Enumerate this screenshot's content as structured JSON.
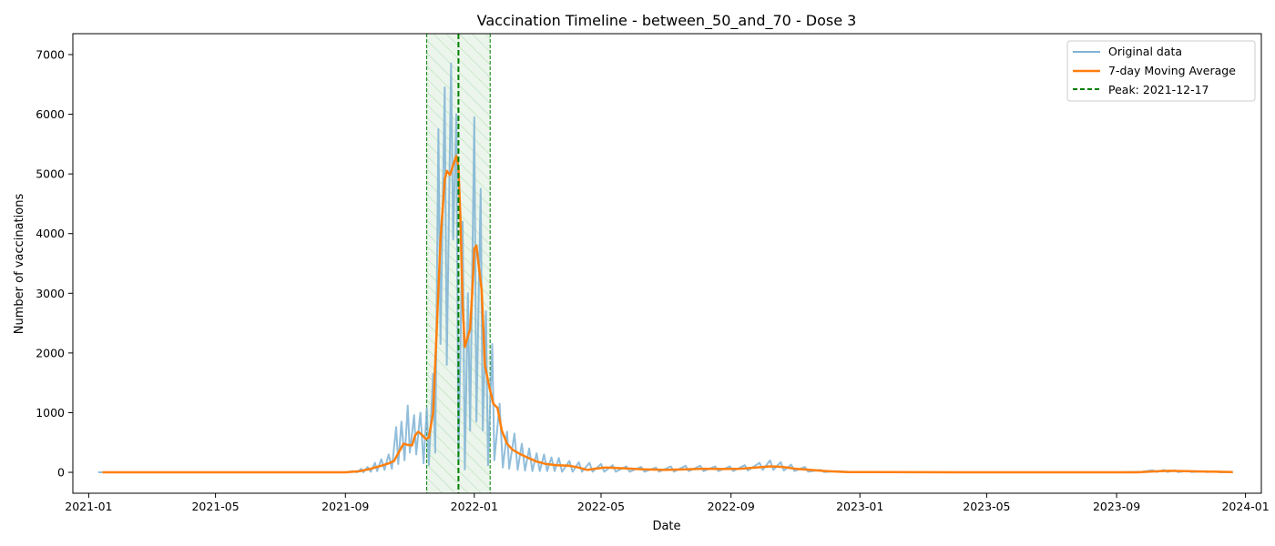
{
  "chart_data": {
    "type": "line",
    "title": "Vaccination Timeline - between_50_and_70 - Dose 3",
    "xlabel": "Date",
    "ylabel": "Number of vaccinations",
    "xlim": [
      "2020-12-17",
      "2024-01-16"
    ],
    "ylim": [
      -350,
      7350
    ],
    "x_ticks": [
      "2021-01",
      "2021-05",
      "2021-09",
      "2022-01",
      "2022-05",
      "2022-09",
      "2023-01",
      "2023-05",
      "2023-09",
      "2024-01"
    ],
    "y_ticks": [
      0,
      1000,
      2000,
      3000,
      4000,
      5000,
      6000,
      7000
    ],
    "grid": false,
    "legend_position": "top-right",
    "peak_date": "2021-12-17",
    "peak_window": [
      "2021-11-17",
      "2022-01-16"
    ],
    "series": [
      {
        "name": "Original data",
        "style": "line",
        "color": "#7fb3d5",
        "points": [
          [
            "2021-01-10",
            0
          ],
          [
            "2021-02-01",
            0
          ],
          [
            "2021-04-01",
            0
          ],
          [
            "2021-06-01",
            0
          ],
          [
            "2021-08-01",
            0
          ],
          [
            "2021-09-01",
            0
          ],
          [
            "2021-09-08",
            20
          ],
          [
            "2021-09-12",
            0
          ],
          [
            "2021-09-16",
            60
          ],
          [
            "2021-09-18",
            0
          ],
          [
            "2021-09-22",
            90
          ],
          [
            "2021-09-25",
            10
          ],
          [
            "2021-09-29",
            160
          ],
          [
            "2021-10-01",
            20
          ],
          [
            "2021-10-05",
            220
          ],
          [
            "2021-10-08",
            40
          ],
          [
            "2021-10-12",
            300
          ],
          [
            "2021-10-15",
            60
          ],
          [
            "2021-10-19",
            760
          ],
          [
            "2021-10-21",
            140
          ],
          [
            "2021-10-24",
            850
          ],
          [
            "2021-10-27",
            200
          ],
          [
            "2021-10-30",
            1120
          ],
          [
            "2021-11-01",
            330
          ],
          [
            "2021-11-05",
            960
          ],
          [
            "2021-11-07",
            300
          ],
          [
            "2021-11-11",
            1000
          ],
          [
            "2021-11-14",
            150
          ],
          [
            "2021-11-17",
            1080
          ],
          [
            "2021-11-19",
            120
          ],
          [
            "2021-11-23",
            1650
          ],
          [
            "2021-11-25",
            330
          ],
          [
            "2021-11-28",
            5750
          ],
          [
            "2021-11-30",
            2150
          ],
          [
            "2021-12-04",
            6450
          ],
          [
            "2021-12-06",
            1800
          ],
          [
            "2021-12-10",
            6850
          ],
          [
            "2021-12-12",
            3900
          ],
          [
            "2021-12-15",
            6000
          ],
          [
            "2021-12-17",
            200
          ],
          [
            "2021-12-21",
            4200
          ],
          [
            "2021-12-23",
            50
          ],
          [
            "2021-12-26",
            3000
          ],
          [
            "2021-12-28",
            700
          ],
          [
            "2022-01-01",
            5950
          ],
          [
            "2022-01-03",
            850
          ],
          [
            "2022-01-07",
            4750
          ],
          [
            "2022-01-09",
            700
          ],
          [
            "2022-01-12",
            2700
          ],
          [
            "2022-01-14",
            120
          ],
          [
            "2022-01-18",
            2150
          ],
          [
            "2022-01-20",
            200
          ],
          [
            "2022-01-25",
            1150
          ],
          [
            "2022-01-28",
            80
          ],
          [
            "2022-02-01",
            680
          ],
          [
            "2022-02-03",
            60
          ],
          [
            "2022-02-08",
            650
          ],
          [
            "2022-02-11",
            40
          ],
          [
            "2022-02-15",
            480
          ],
          [
            "2022-02-18",
            30
          ],
          [
            "2022-02-22",
            400
          ],
          [
            "2022-02-25",
            20
          ],
          [
            "2022-03-01",
            320
          ],
          [
            "2022-03-04",
            20
          ],
          [
            "2022-03-08",
            300
          ],
          [
            "2022-03-11",
            20
          ],
          [
            "2022-03-15",
            250
          ],
          [
            "2022-03-18",
            20
          ],
          [
            "2022-03-22",
            240
          ],
          [
            "2022-03-25",
            10
          ],
          [
            "2022-04-01",
            190
          ],
          [
            "2022-04-04",
            10
          ],
          [
            "2022-04-10",
            170
          ],
          [
            "2022-04-13",
            10
          ],
          [
            "2022-04-20",
            160
          ],
          [
            "2022-04-23",
            10
          ],
          [
            "2022-05-01",
            140
          ],
          [
            "2022-05-04",
            10
          ],
          [
            "2022-05-12",
            120
          ],
          [
            "2022-05-15",
            10
          ],
          [
            "2022-05-25",
            100
          ],
          [
            "2022-05-28",
            10
          ],
          [
            "2022-06-08",
            90
          ],
          [
            "2022-06-11",
            10
          ],
          [
            "2022-06-22",
            80
          ],
          [
            "2022-06-25",
            10
          ],
          [
            "2022-07-06",
            100
          ],
          [
            "2022-07-09",
            10
          ],
          [
            "2022-07-20",
            110
          ],
          [
            "2022-07-23",
            20
          ],
          [
            "2022-08-03",
            110
          ],
          [
            "2022-08-06",
            20
          ],
          [
            "2022-08-17",
            100
          ],
          [
            "2022-08-20",
            20
          ],
          [
            "2022-08-31",
            100
          ],
          [
            "2022-09-03",
            20
          ],
          [
            "2022-09-14",
            120
          ],
          [
            "2022-09-17",
            30
          ],
          [
            "2022-09-28",
            160
          ],
          [
            "2022-10-01",
            40
          ],
          [
            "2022-10-08",
            200
          ],
          [
            "2022-10-11",
            40
          ],
          [
            "2022-10-18",
            170
          ],
          [
            "2022-10-21",
            30
          ],
          [
            "2022-10-28",
            130
          ],
          [
            "2022-10-31",
            20
          ],
          [
            "2022-11-10",
            90
          ],
          [
            "2022-11-13",
            10
          ],
          [
            "2022-11-25",
            40
          ],
          [
            "2022-11-28",
            5
          ],
          [
            "2022-12-10",
            20
          ],
          [
            "2022-12-31",
            0
          ],
          [
            "2023-03-01",
            0
          ],
          [
            "2023-06-01",
            0
          ],
          [
            "2023-09-01",
            0
          ],
          [
            "2023-09-25",
            10
          ],
          [
            "2023-10-05",
            35
          ],
          [
            "2023-10-09",
            5
          ],
          [
            "2023-10-16",
            40
          ],
          [
            "2023-10-19",
            5
          ],
          [
            "2023-10-26",
            35
          ],
          [
            "2023-10-29",
            5
          ],
          [
            "2023-11-08",
            25
          ],
          [
            "2023-11-11",
            5
          ],
          [
            "2023-11-22",
            20
          ],
          [
            "2023-11-25",
            5
          ],
          [
            "2023-12-05",
            15
          ],
          [
            "2023-12-08",
            0
          ],
          [
            "2023-12-20",
            5
          ]
        ]
      },
      {
        "name": "7-day Moving Average",
        "style": "line",
        "color": "#ff7f0e",
        "points": [
          [
            "2021-01-14",
            0
          ],
          [
            "2021-04-01",
            0
          ],
          [
            "2021-07-01",
            0
          ],
          [
            "2021-09-01",
            0
          ],
          [
            "2021-09-15",
            20
          ],
          [
            "2021-09-25",
            60
          ],
          [
            "2021-10-05",
            110
          ],
          [
            "2021-10-12",
            150
          ],
          [
            "2021-10-17",
            190
          ],
          [
            "2021-10-22",
            350
          ],
          [
            "2021-10-26",
            480
          ],
          [
            "2021-10-30",
            460
          ],
          [
            "2021-11-03",
            450
          ],
          [
            "2021-11-06",
            620
          ],
          [
            "2021-11-09",
            680
          ],
          [
            "2021-11-13",
            620
          ],
          [
            "2021-11-16",
            560
          ],
          [
            "2021-11-19",
            580
          ],
          [
            "2021-11-23",
            1000
          ],
          [
            "2021-11-26",
            2200
          ],
          [
            "2021-11-30",
            3900
          ],
          [
            "2021-12-04",
            4900
          ],
          [
            "2021-12-06",
            5050
          ],
          [
            "2021-12-09",
            4980
          ],
          [
            "2021-12-12",
            5150
          ],
          [
            "2021-12-15",
            5300
          ],
          [
            "2021-12-17",
            5120
          ],
          [
            "2021-12-19",
            4200
          ],
          [
            "2021-12-21",
            2800
          ],
          [
            "2021-12-23",
            2100
          ],
          [
            "2021-12-25",
            2220
          ],
          [
            "2021-12-28",
            2400
          ],
          [
            "2021-12-30",
            3000
          ],
          [
            "2022-01-01",
            3750
          ],
          [
            "2022-01-03",
            3800
          ],
          [
            "2022-01-05",
            3500
          ],
          [
            "2022-01-08",
            3050
          ],
          [
            "2022-01-11",
            1800
          ],
          [
            "2022-01-15",
            1450
          ],
          [
            "2022-01-19",
            1150
          ],
          [
            "2022-01-23",
            1080
          ],
          [
            "2022-01-27",
            700
          ],
          [
            "2022-02-01",
            480
          ],
          [
            "2022-02-06",
            380
          ],
          [
            "2022-02-12",
            320
          ],
          [
            "2022-02-20",
            250
          ],
          [
            "2022-03-01",
            180
          ],
          [
            "2022-03-10",
            140
          ],
          [
            "2022-03-20",
            120
          ],
          [
            "2022-04-01",
            110
          ],
          [
            "2022-04-10",
            80
          ],
          [
            "2022-04-18",
            40
          ],
          [
            "2022-04-25",
            60
          ],
          [
            "2022-05-05",
            80
          ],
          [
            "2022-05-20",
            70
          ],
          [
            "2022-06-10",
            50
          ],
          [
            "2022-07-01",
            40
          ],
          [
            "2022-07-20",
            50
          ],
          [
            "2022-08-05",
            60
          ],
          [
            "2022-08-25",
            55
          ],
          [
            "2022-09-10",
            60
          ],
          [
            "2022-09-25",
            80
          ],
          [
            "2022-10-08",
            100
          ],
          [
            "2022-10-20",
            90
          ],
          [
            "2022-11-01",
            60
          ],
          [
            "2022-11-15",
            40
          ],
          [
            "2022-12-01",
            20
          ],
          [
            "2022-12-20",
            5
          ],
          [
            "2023-01-10",
            5
          ],
          [
            "2023-04-01",
            0
          ],
          [
            "2023-07-01",
            0
          ],
          [
            "2023-09-20",
            0
          ],
          [
            "2023-10-05",
            15
          ],
          [
            "2023-10-20",
            25
          ],
          [
            "2023-11-05",
            20
          ],
          [
            "2023-11-20",
            15
          ],
          [
            "2023-12-05",
            10
          ],
          [
            "2023-12-20",
            5
          ]
        ]
      },
      {
        "name": "Peak: 2021-12-17",
        "style": "dashed",
        "color": "#008000",
        "x": "2021-12-17"
      }
    ]
  }
}
